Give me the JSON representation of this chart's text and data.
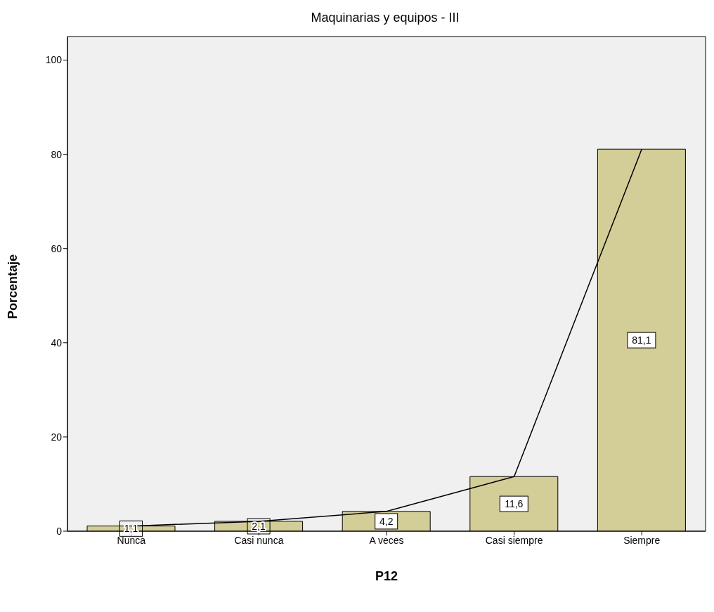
{
  "chart_data": {
    "type": "bar",
    "title": "Maquinarias  y equipos - III",
    "xlabel": "P12",
    "ylabel": "Porcentaje",
    "categories": [
      "Nunca",
      "Casi nunca",
      "A veces",
      "Casi siempre",
      "Siempre"
    ],
    "series": [
      {
        "color": "#d3ce97",
        "values": [
          1.1,
          2.1,
          4.2,
          11.6,
          81.1
        ],
        "value_labels": [
          "1,1",
          "2,1",
          "4,2",
          "11,6",
          "81,1"
        ]
      },
      {
        "type": "line",
        "color": "#000000",
        "values": [
          1.1,
          2.1,
          4.2,
          11.6,
          81.1
        ]
      }
    ],
    "ylim": [
      0,
      105
    ],
    "yticks": [
      0,
      20,
      40,
      60,
      80,
      100
    ],
    "marker": "none"
  }
}
